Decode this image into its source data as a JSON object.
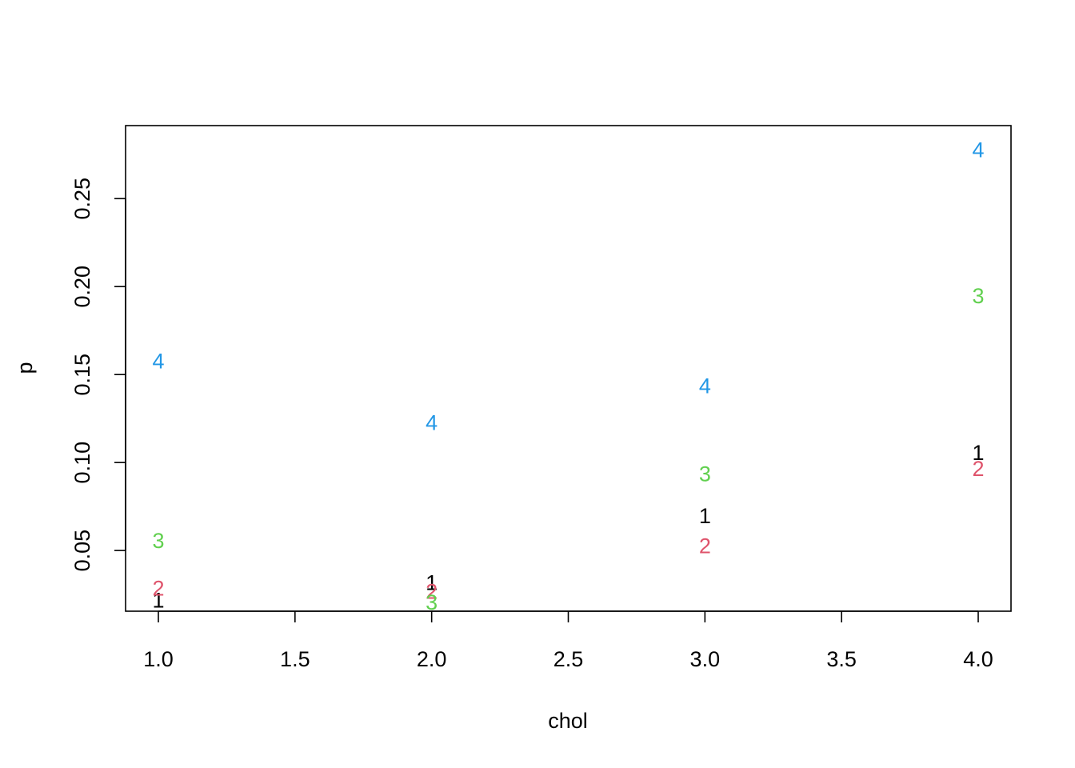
{
  "chart_data": {
    "type": "scatter",
    "title": "",
    "xlabel": "chol",
    "ylabel": "p",
    "xlim": [
      0.88,
      4.12
    ],
    "ylim": [
      0.0155,
      0.2915
    ],
    "x_ticks": [
      1.0,
      1.5,
      2.0,
      2.5,
      3.0,
      3.5,
      4.0
    ],
    "x_tick_labels": [
      "1.0",
      "1.5",
      "2.0",
      "2.5",
      "3.0",
      "3.5",
      "4.0"
    ],
    "y_ticks": [
      0.05,
      0.1,
      0.15,
      0.2,
      0.25
    ],
    "y_tick_labels": [
      "0.05",
      "0.10",
      "0.15",
      "0.20",
      "0.25"
    ],
    "grid": false,
    "series": [
      {
        "marker": "1",
        "color": "#000000",
        "points": [
          {
            "x": 1,
            "y": 0.022
          },
          {
            "x": 2,
            "y": 0.032
          },
          {
            "x": 3,
            "y": 0.07
          },
          {
            "x": 4,
            "y": 0.106
          }
        ]
      },
      {
        "marker": "2",
        "color": "#DF536B",
        "points": [
          {
            "x": 1,
            "y": 0.029
          },
          {
            "x": 2,
            "y": 0.027
          },
          {
            "x": 3,
            "y": 0.053
          },
          {
            "x": 4,
            "y": 0.097
          }
        ]
      },
      {
        "marker": "3",
        "color": "#61D04F",
        "points": [
          {
            "x": 1,
            "y": 0.056
          },
          {
            "x": 2,
            "y": 0.021
          },
          {
            "x": 3,
            "y": 0.094
          },
          {
            "x": 4,
            "y": 0.195
          }
        ]
      },
      {
        "marker": "4",
        "color": "#2297E6",
        "points": [
          {
            "x": 1,
            "y": 0.158
          },
          {
            "x": 2,
            "y": 0.123
          },
          {
            "x": 3,
            "y": 0.144
          },
          {
            "x": 4,
            "y": 0.278
          }
        ]
      }
    ]
  }
}
